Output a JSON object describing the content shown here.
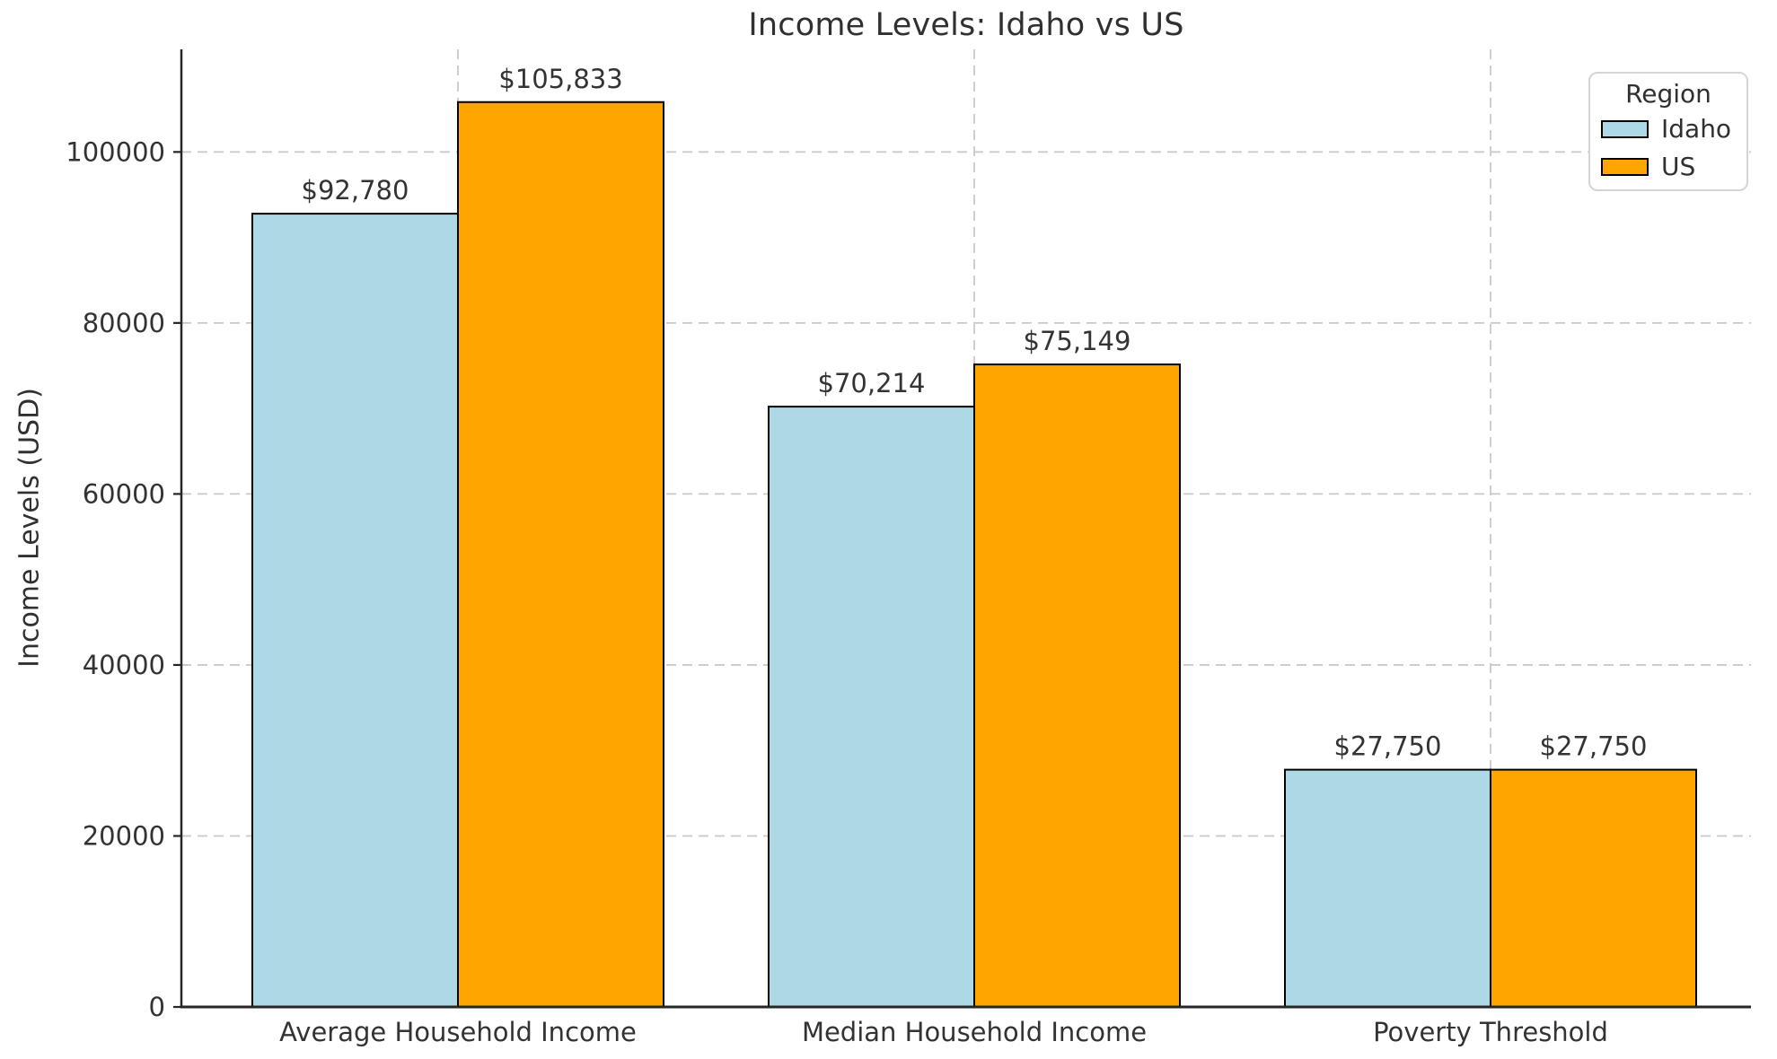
{
  "chart_data": {
    "type": "bar",
    "title": "Income Levels: Idaho vs US",
    "xlabel": "",
    "ylabel": "Income Levels (USD)",
    "categories": [
      "Average Household Income",
      "Median Household Income",
      "Poverty Threshold"
    ],
    "series": [
      {
        "name": "Idaho",
        "color": "#ADD8E6",
        "values": [
          92780,
          70214,
          27750
        ],
        "value_labels": [
          "$92,780",
          "$70,214",
          "$27,750"
        ]
      },
      {
        "name": "US",
        "color": "#FFA500",
        "values": [
          105833,
          75149,
          27750
        ],
        "value_labels": [
          "$105,833",
          "$75,149",
          "$27,750"
        ]
      }
    ],
    "ylim": [
      0,
      112000
    ],
    "yticks": [
      0,
      20000,
      40000,
      60000,
      80000,
      100000
    ],
    "ytick_labels": [
      "0",
      "20000",
      "40000",
      "60000",
      "80000",
      "100000"
    ],
    "legend": {
      "title": "Region",
      "position": "upper right"
    },
    "grid": {
      "visible": true,
      "style": "dashed"
    },
    "styles": {
      "grid_color": "#c9c9c9",
      "bar_edge_color": "#000000",
      "spine_color": "#262626",
      "text_color": "#333333",
      "background": "#ffffff"
    }
  }
}
